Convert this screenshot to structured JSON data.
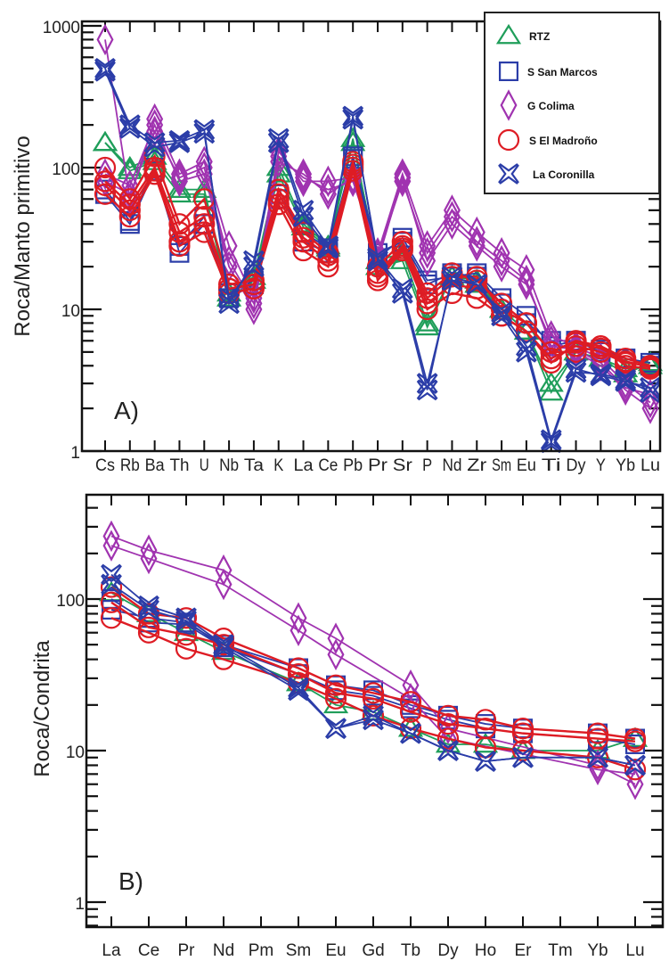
{
  "styles": {
    "RTZ": {
      "color": "#1f9e5a",
      "marker": "triangle"
    },
    "S San Marcos": {
      "color": "#2b3da8",
      "marker": "square"
    },
    "G Colima": {
      "color": "#a033b0",
      "marker": "diamond"
    },
    "S El Madroño": {
      "color": "#de1c24",
      "marker": "circle"
    },
    "La Coronilla": {
      "color": "#2b3da8",
      "marker": "x"
    }
  },
  "legend": {
    "placement": "top-right",
    "entries": [
      "RTZ",
      "S San Marcos",
      "G Colima",
      "S El Madroño",
      "La Coronilla"
    ]
  },
  "chart_data": [
    {
      "type": "line",
      "panel_label": "A)",
      "title": "",
      "xlabel": "",
      "ylabel": "Roca/Manto primitivo",
      "yscale": "log",
      "ylim": [
        1,
        1000
      ],
      "yticks": [
        1,
        10,
        100,
        1000
      ],
      "ytick_labels": [
        "1",
        "10",
        "100",
        "1000"
      ],
      "grid": false,
      "categories": [
        "Cs",
        "Rb",
        "Ba",
        "Th",
        "U",
        "Nb",
        "Ta",
        "K",
        "La",
        "Ce",
        "Pb",
        "Pr",
        "Sr",
        "P",
        "Nd",
        "Zr",
        "Sm",
        "Eu",
        "Ti",
        "Dy",
        "Y",
        "Yb",
        "Lu"
      ],
      "series": [
        {
          "name": "RTZ",
          "values": [
            150,
            100,
            120,
            70,
            70,
            13,
            17,
            100,
            40,
            28,
            160,
            20,
            22,
            7.5,
            17,
            16,
            10,
            7,
            2.6,
            5,
            4.5,
            3.5,
            4.2
          ]
        },
        {
          "name": "RTZ",
          "values": [
            150,
            95,
            110,
            65,
            65,
            12,
            16,
            90,
            38,
            27,
            150,
            22,
            25,
            8,
            17,
            15,
            10,
            7,
            3,
            5,
            4.5,
            3.8,
            4.0
          ]
        },
        {
          "name": "S San Marcos",
          "values": [
            65,
            40,
            95,
            25,
            40,
            12,
            15,
            60,
            30,
            25,
            120,
            25,
            30,
            15,
            18,
            17,
            11,
            8,
            6,
            6,
            5,
            4.5,
            4.0
          ]
        },
        {
          "name": "S San Marcos",
          "values": [
            70,
            42,
            100,
            28,
            45,
            13,
            16,
            65,
            35,
            27,
            115,
            23,
            32,
            16,
            17,
            18,
            12,
            9,
            5.5,
            6,
            5.2,
            4.5,
            4.2
          ]
        },
        {
          "name": "G Colima",
          "values": [
            800,
            60,
            220,
            90,
            110,
            28,
            12,
            130,
            80,
            80,
            85,
            25,
            90,
            28,
            50,
            35,
            25,
            19,
            6.5,
            5.5,
            4.5,
            3,
            2.2
          ]
        },
        {
          "name": "G Colima",
          "values": [
            90,
            75,
            200,
            80,
            90,
            20,
            10,
            110,
            90,
            65,
            85,
            22,
            85,
            22,
            40,
            28,
            20,
            15,
            6,
            5,
            4,
            2.7,
            2.0
          ]
        },
        {
          "name": "G Colima",
          "values": [
            80,
            65,
            180,
            85,
            100,
            22,
            11,
            120,
            85,
            70,
            80,
            24,
            80,
            25,
            45,
            30,
            22,
            16,
            5.5,
            5.2,
            4.2,
            2.8,
            2.5
          ]
        },
        {
          "name": "S El Madroño",
          "values": [
            100,
            60,
            120,
            40,
            60,
            15,
            16,
            70,
            35,
            25,
            110,
            18,
            28,
            12,
            17,
            17,
            10,
            8,
            5,
            5,
            5.5,
            4,
            3.8
          ]
        },
        {
          "name": "S El Madroño",
          "values": [
            75,
            50,
            95,
            30,
            40,
            14,
            15,
            60,
            30,
            22,
            100,
            17,
            27,
            11,
            15,
            14,
            9,
            7,
            4.5,
            5.5,
            5,
            4.2,
            4.0
          ]
        },
        {
          "name": "S El Madroño",
          "values": [
            65,
            45,
            90,
            28,
            35,
            13,
            14,
            55,
            26,
            20,
            95,
            16,
            26,
            10,
            13,
            12,
            9,
            7,
            4.2,
            5.8,
            5.3,
            4.3,
            3.9
          ]
        },
        {
          "name": "S El Madroño",
          "values": [
            80,
            55,
            100,
            35,
            45,
            14,
            15,
            65,
            32,
            24,
            105,
            20,
            30,
            13,
            18,
            16,
            11,
            8,
            5,
            6,
            5.5,
            4.5,
            4.0
          ]
        },
        {
          "name": "La Coronilla",
          "values": [
            500,
            200,
            150,
            155,
            185,
            11,
            22,
            160,
            50,
            28,
            230,
            22,
            13,
            2.7,
            17,
            15,
            9,
            5,
            1.15,
            3.6,
            3.5,
            3.2,
            2.6
          ]
        },
        {
          "name": "La Coronilla",
          "values": [
            480,
            190,
            140,
            150,
            175,
            12,
            20,
            150,
            45,
            27,
            220,
            23,
            14,
            3,
            16,
            15,
            9.5,
            5.5,
            1.2,
            3.8,
            3.4,
            3.1,
            2.8
          ]
        }
      ]
    },
    {
      "type": "line",
      "panel_label": "B)",
      "title": "",
      "xlabel": "",
      "ylabel": "Roca/Condrita",
      "yscale": "log",
      "ylim": [
        0.7,
        400
      ],
      "yticks": [
        1,
        10,
        100
      ],
      "ytick_labels": [
        "1",
        "10",
        "100"
      ],
      "grid": false,
      "categories": [
        "La",
        "Ce",
        "Pr",
        "Nd",
        "Pm",
        "Sm",
        "Eu",
        "Gd",
        "Tb",
        "Dy",
        "Ho",
        "Er",
        "Tm",
        "Yb",
        "Lu"
      ],
      "series": [
        {
          "name": "RTZ",
          "values": [
            110,
            80,
            60,
            45,
            null,
            28,
            20,
            18,
            14,
            11,
            11,
            10,
            null,
            10,
            12
          ]
        },
        {
          "name": "S San Marcos",
          "values": [
            85,
            75,
            70,
            50,
            null,
            35,
            27,
            25,
            20,
            17,
            15,
            14,
            null,
            13,
            12
          ]
        },
        {
          "name": "S San Marcos",
          "values": [
            100,
            70,
            68,
            48,
            null,
            32,
            25,
            23,
            19,
            16,
            14,
            13,
            null,
            12,
            11
          ]
        },
        {
          "name": "G Colima",
          "values": [
            260,
            210,
            null,
            155,
            null,
            75,
            55,
            null,
            27,
            14,
            null,
            null,
            null,
            8,
            6
          ]
        },
        {
          "name": "G Colima",
          "values": [
            225,
            185,
            null,
            125,
            null,
            62,
            43,
            null,
            22,
            12,
            null,
            null,
            null,
            7.5,
            7
          ]
        },
        {
          "name": "S El Madroño",
          "values": [
            120,
            80,
            75,
            55,
            null,
            35,
            27,
            24,
            21,
            17,
            16,
            14,
            null,
            13,
            12
          ]
        },
        {
          "name": "S El Madroño",
          "values": [
            95,
            65,
            58,
            50,
            null,
            32,
            24,
            22,
            18,
            15,
            14,
            13,
            null,
            12,
            11.5
          ]
        },
        {
          "name": "S El Madroño",
          "values": [
            75,
            60,
            47,
            40,
            null,
            28,
            22,
            17,
            14,
            12,
            10.5,
            10,
            null,
            9,
            7.5
          ]
        },
        {
          "name": "La Coronilla",
          "values": [
            145,
            90,
            75,
            50,
            null,
            26,
            14,
            17,
            13,
            10,
            8.5,
            9,
            null,
            9,
            8
          ]
        },
        {
          "name": "La Coronilla",
          "values": [
            125,
            85,
            72,
            48,
            null,
            25,
            14,
            16,
            13,
            10,
            8.5,
            9,
            null,
            9,
            8
          ]
        }
      ]
    }
  ]
}
